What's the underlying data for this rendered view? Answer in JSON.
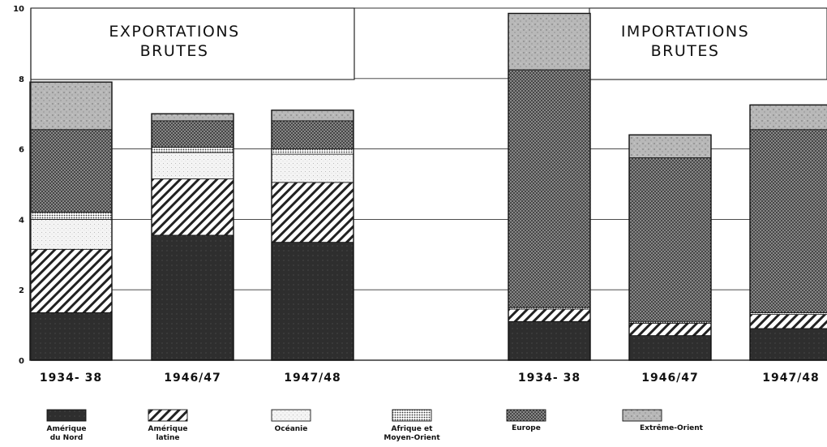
{
  "chart_data": {
    "type": "bar",
    "stacked": true,
    "ylim": [
      0,
      10
    ],
    "yticks": [
      "0",
      "2",
      "4",
      "6",
      "8",
      "10"
    ],
    "grid": true,
    "legend_position": "bottom",
    "panels": [
      {
        "title_lines": [
          "EXPORTATIONS",
          "BRUTES"
        ],
        "categories": [
          "1934- 38",
          "1946/47",
          "1947/48"
        ],
        "series": [
          {
            "name": "Amérique du Nord",
            "values": [
              1.35,
              3.55,
              3.35
            ]
          },
          {
            "name": "Amérique latine",
            "values": [
              1.8,
              1.6,
              1.7
            ]
          },
          {
            "name": "Océanie",
            "values": [
              0.85,
              0.75,
              0.8
            ]
          },
          {
            "name": "Afrique et Moyen-Orient",
            "values": [
              0.2,
              0.15,
              0.15
            ]
          },
          {
            "name": "Europe",
            "values": [
              2.35,
              0.75,
              0.8
            ]
          },
          {
            "name": "Extrême-Orient",
            "values": [
              1.35,
              0.2,
              0.3
            ]
          }
        ]
      },
      {
        "title_lines": [
          "IMPORTATIONS",
          "BRUTES"
        ],
        "categories": [
          "1934- 38",
          "1946/47",
          "1947/48"
        ],
        "series": [
          {
            "name": "Amérique du Nord",
            "values": [
              1.1,
              0.7,
              0.9
            ]
          },
          {
            "name": "Amérique latine",
            "values": [
              0.35,
              0.35,
              0.4
            ]
          },
          {
            "name": "Océanie",
            "values": [
              0.0,
              0.0,
              0.0
            ]
          },
          {
            "name": "Afrique et Moyen-Orient",
            "values": [
              0.05,
              0.05,
              0.05
            ]
          },
          {
            "name": "Europe",
            "values": [
              6.75,
              4.65,
              5.2
            ]
          },
          {
            "name": "Extrême-Orient",
            "values": [
              1.6,
              0.65,
              0.7
            ]
          }
        ]
      }
    ],
    "legend": [
      {
        "lines": [
          "Amérique",
          "du Nord"
        ],
        "pattern": "solid-dark"
      },
      {
        "lines": [
          "Amérique",
          "latine"
        ],
        "pattern": "hatch"
      },
      {
        "lines": [
          "Océanie"
        ],
        "pattern": "light-dots"
      },
      {
        "lines": [
          "Afrique et",
          "Moyen-Orient"
        ],
        "pattern": "fine-dots"
      },
      {
        "lines": [
          "Europe"
        ],
        "pattern": "crosshatch"
      },
      {
        "lines": [
          "Extrême-Orient"
        ],
        "pattern": "grey-speckle"
      }
    ],
    "colors": {
      "solid-dark": "#2e2e2e",
      "crosshatch_fill": "#8c8c8c",
      "grey-speckle": "#b4b4b4",
      "light-dots": "#f2f2f2"
    }
  }
}
